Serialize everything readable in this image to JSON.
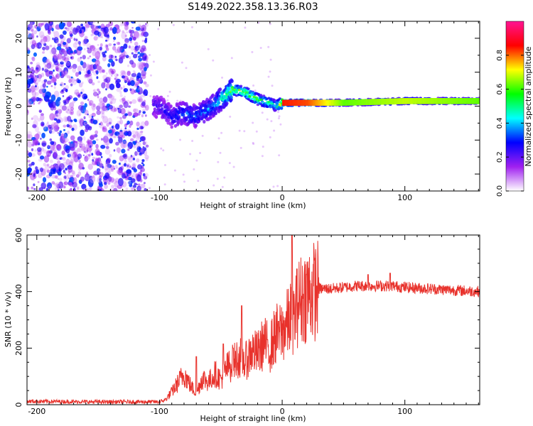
{
  "title": "S149.2022.358.13.36.R03",
  "chart_data": [
    {
      "type": "heatmap",
      "panel": "spectrogram",
      "xlabel": "Height of straight line (km)",
      "ylabel": "Frequency (Hz)",
      "xlim": [
        -208,
        161
      ],
      "ylim": [
        -25,
        25
      ],
      "xticks": [
        -200,
        -100,
        0,
        100
      ],
      "yticks": [
        -20,
        -10,
        0,
        10,
        20
      ],
      "colorbar": {
        "label": "Normalized spectral amplitude",
        "range": [
          0,
          1
        ],
        "ticks": [
          "0.0",
          "0.2",
          "0.4",
          "0.6",
          "0.8"
        ],
        "tick_values": [
          0.0,
          0.2,
          0.4,
          0.6,
          0.8
        ],
        "colormap": [
          "#ffffff",
          "#a020f0",
          "#0000ff",
          "#00ffff",
          "#00ff00",
          "#ffff00",
          "#ff0000",
          "#ff1493"
        ]
      },
      "signal_track": {
        "x": [
          -100,
          -90,
          -80,
          -70,
          -60,
          -50,
          -40,
          -30,
          -20,
          -10,
          -5,
          0,
          20,
          50,
          100,
          161
        ],
        "freq_hz": [
          0,
          -3,
          -2,
          -3,
          -1,
          2,
          5,
          4,
          2,
          1,
          0,
          1,
          1,
          1,
          1.5,
          1.5
        ],
        "amplitude": [
          0.2,
          0.25,
          0.3,
          0.3,
          0.35,
          0.45,
          0.6,
          0.7,
          0.6,
          0.55,
          0.5,
          0.9,
          0.85,
          0.5,
          0.6,
          0.5
        ]
      }
    },
    {
      "type": "line",
      "panel": "snr",
      "xlabel": "Height of straight line (km)",
      "ylabel": "SNR (10 * v/v)",
      "xlim": [
        -208,
        161
      ],
      "ylim": [
        0,
        600
      ],
      "xticks": [
        -200,
        -100,
        0,
        100
      ],
      "yticks": [
        0,
        200,
        400,
        600
      ],
      "color": "#e8322c",
      "series_envelope": {
        "x": [
          -208,
          -150,
          -100,
          -95,
          -90,
          -80,
          -75,
          -70,
          -65,
          -60,
          -55,
          -50,
          -45,
          -40,
          -35,
          -30,
          -25,
          -20,
          -15,
          -10,
          -5,
          0,
          5,
          8,
          10,
          12,
          15,
          20,
          25,
          30,
          40,
          50,
          60,
          70,
          80,
          90,
          100,
          120,
          140,
          161
        ],
        "y": [
          12,
          10,
          10,
          18,
          45,
          110,
          70,
          40,
          95,
          80,
          110,
          90,
          130,
          150,
          170,
          150,
          190,
          180,
          220,
          200,
          250,
          260,
          290,
          330,
          300,
          360,
          370,
          395,
          400,
          410,
          410,
          415,
          420,
          420,
          420,
          420,
          415,
          410,
          405,
          400
        ]
      },
      "spikes": [
        {
          "x": -70,
          "y": 170
        },
        {
          "x": -48,
          "y": 215
        },
        {
          "x": -40,
          "y": 200
        },
        {
          "x": -33,
          "y": 350
        },
        {
          "x": -12,
          "y": 230
        },
        {
          "x": -3,
          "y": 295
        },
        {
          "x": 8,
          "y": 600
        },
        {
          "x": 12,
          "y": 480
        },
        {
          "x": 70,
          "y": 460
        },
        {
          "x": 88,
          "y": 465
        }
      ]
    }
  ]
}
